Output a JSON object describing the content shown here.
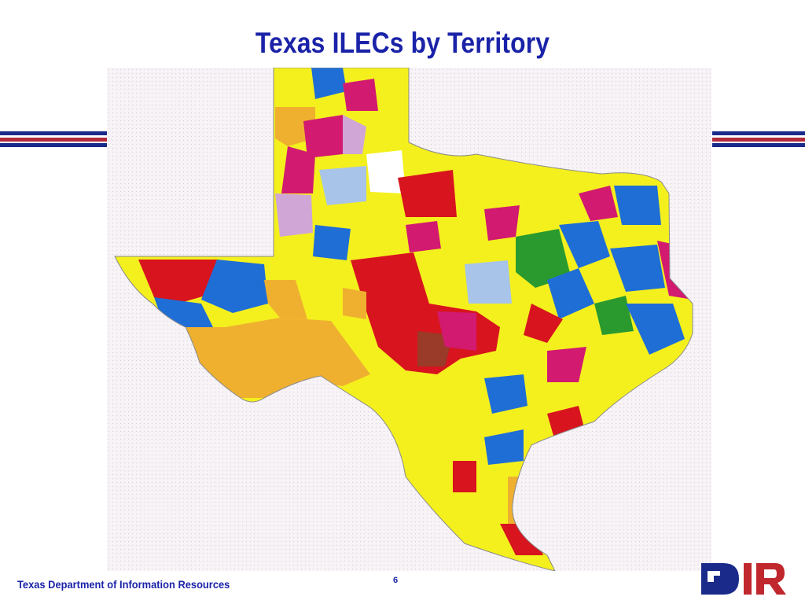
{
  "slide": {
    "title": "Texas ILECs by Territory",
    "page_number": "6",
    "footer": "Texas Department of Information Resources"
  },
  "logo": {
    "text": "DIR",
    "colors": {
      "d": "#1a2a8a",
      "ir": "#c0282e"
    }
  },
  "map": {
    "subject": "Texas incumbent local exchange carrier territories",
    "territory_colors": {
      "yellow": "#f4f01e",
      "blue": "#1f6ed6",
      "red": "#d8141e",
      "magenta": "#d21a70",
      "green": "#2a9a2e",
      "orange": "#efb030",
      "lavender": "#cfa6d6",
      "lightblue": "#a8c4e8",
      "brown": "#9a3a28",
      "white": "#ffffff"
    }
  },
  "theme": {
    "title_color": "#1a23a8",
    "rule_blue": "#1a2a8a",
    "rule_red": "#b32a3a"
  }
}
